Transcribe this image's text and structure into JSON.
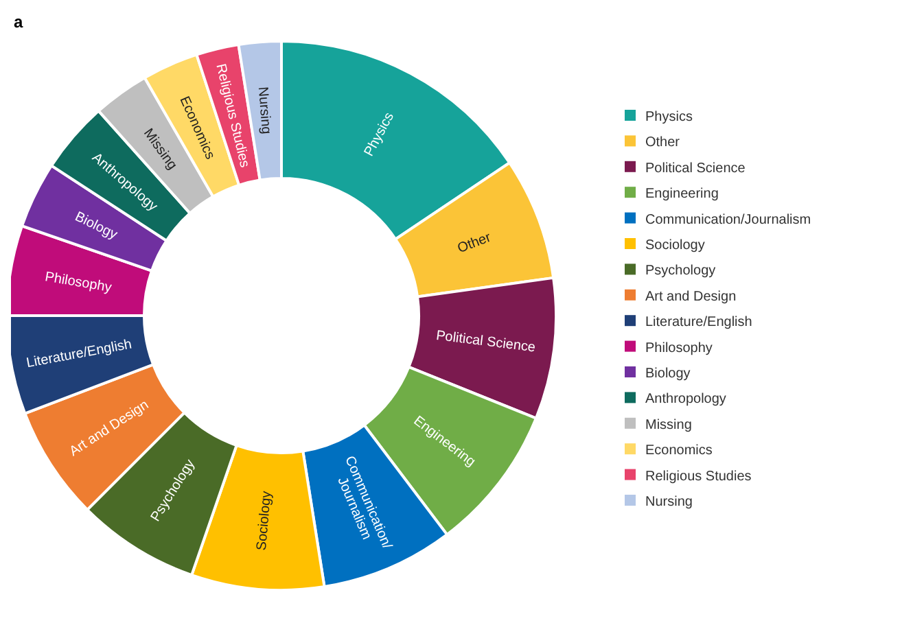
{
  "chart_data": {
    "type": "donut",
    "annotations": [
      "a"
    ],
    "categories": [
      "Physics",
      "Other",
      "Political Science",
      "Engineering",
      "Communication/\nJournalism",
      "Sociology",
      "Psychology",
      "Art and Design",
      "Literature/English",
      "Philosophy",
      "Biology",
      "Anthropology",
      "Missing",
      "Economics",
      "Religious Studies",
      "Nursing"
    ],
    "values": [
      15.6,
      7.2,
      8.3,
      8.6,
      7.8,
      7.8,
      7.2,
      6.7,
      5.8,
      5.3,
      3.9,
      4.2,
      3.3,
      3.3,
      2.5,
      2.5
    ],
    "colors": [
      "#16a39a",
      "#fbc437",
      "#7b1a4f",
      "#70ad47",
      "#0070c0",
      "#ffc000",
      "#4a6b27",
      "#ee7d31",
      "#1f3f77",
      "#c00c7a",
      "#7030a0",
      "#0e6b5e",
      "#bfbfbf",
      "#ffd966",
      "#e8436b",
      "#b4c7e7"
    ],
    "legend": "right"
  }
}
